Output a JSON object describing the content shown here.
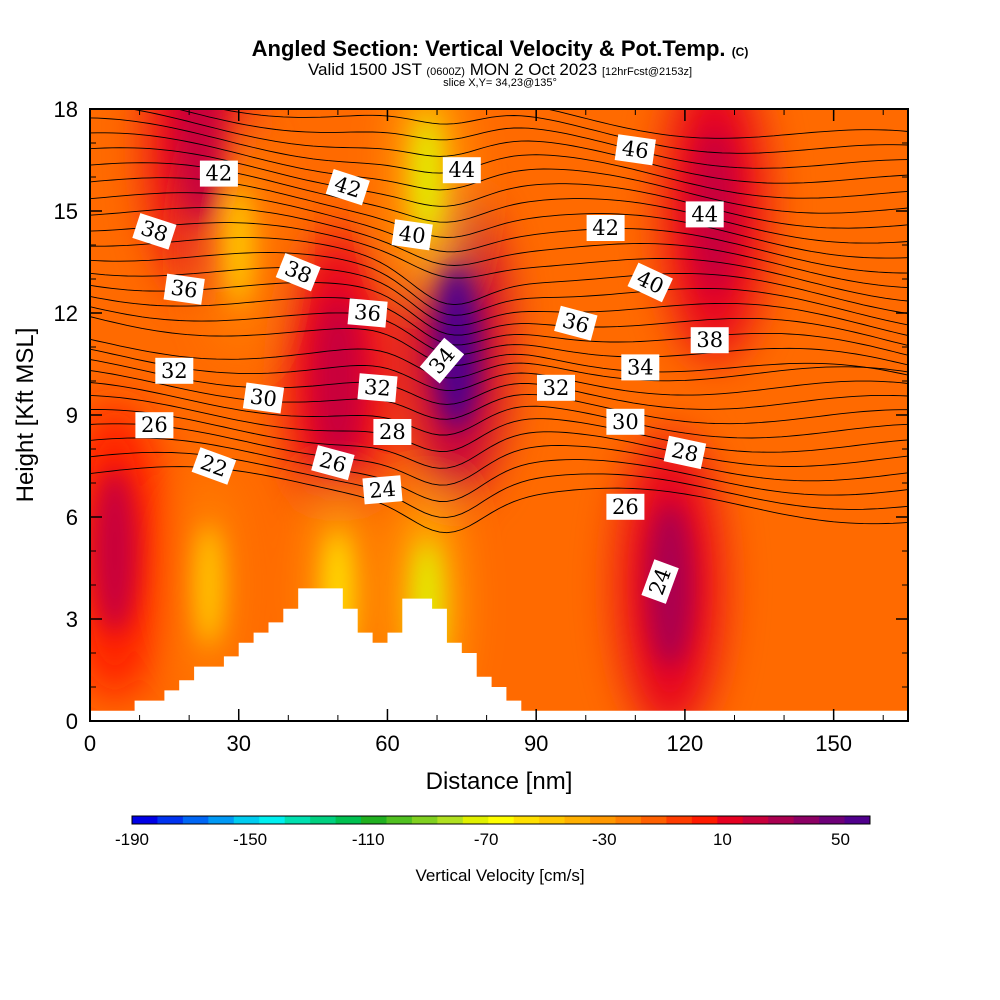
{
  "header": {
    "title_main": "Angled Section: Vertical Velocity & Pot.Temp.",
    "title_mark": "(C)",
    "valid_a": "Valid 1500 JST",
    "valid_b": "(0600Z)",
    "valid_c": "MON 2 Oct 2023",
    "valid_d": "[12hrFcst@2153z]",
    "slice": "slice X,Y= 34,23@135°"
  },
  "chart_data": {
    "type": "heatmap",
    "title": "Angled Section: Vertical Velocity & Pot.Temp.",
    "xlabel": "Distance [nm]",
    "ylabel": "Height [Kft MSL]",
    "xlim": [
      0,
      165
    ],
    "ylim": [
      0,
      18
    ],
    "x_ticks": [
      "0",
      "30",
      "60",
      "90",
      "120",
      "150"
    ],
    "y_ticks": [
      "0",
      "3",
      "6",
      "9",
      "12",
      "15",
      "18"
    ],
    "colorbar": {
      "label": "Vertical Velocity [cm/s]",
      "tick_labels": [
        "-190",
        "-150",
        "-110",
        "-70",
        "-30",
        "10",
        "50"
      ],
      "colors": [
        "#0000e6",
        "#0033f0",
        "#0066f5",
        "#0099f5",
        "#00ccf0",
        "#00f0f0",
        "#00e0b0",
        "#00d080",
        "#00c050",
        "#20b020",
        "#50c020",
        "#80d020",
        "#b0e020",
        "#e0f000",
        "#ffff00",
        "#ffe000",
        "#ffc800",
        "#ffb000",
        "#ff9800",
        "#ff7f00",
        "#ff6000",
        "#ff3c00",
        "#ff1a00",
        "#e60020",
        "#c8003c",
        "#aa0050",
        "#8c0064",
        "#6e0078",
        "#50008c"
      ]
    },
    "shading_features": [
      {
        "kind": "updraft",
        "x": 74,
        "y": 11,
        "value": 55
      },
      {
        "kind": "updraft",
        "x": 50,
        "y": 10,
        "value": 25
      },
      {
        "kind": "updraft",
        "x": 22,
        "y": 17,
        "value": 25
      },
      {
        "kind": "updraft",
        "x": 126,
        "y": 15,
        "value": 20
      },
      {
        "kind": "updraft",
        "x": 117,
        "y": 4,
        "value": 30
      },
      {
        "kind": "updraft",
        "x": 5,
        "y": 5,
        "value": 18
      },
      {
        "kind": "downdraft",
        "x": 68,
        "y": 16,
        "value": -70
      },
      {
        "kind": "downdraft",
        "x": 30,
        "y": 14,
        "value": -45
      },
      {
        "kind": "downdraft",
        "x": 68,
        "y": 3.5,
        "value": -75
      },
      {
        "kind": "downdraft",
        "x": 50,
        "y": 3.8,
        "value": -60
      },
      {
        "kind": "downdraft",
        "x": 24,
        "y": 4,
        "value": -45
      }
    ],
    "terrain": [
      [
        0,
        0.3
      ],
      [
        9,
        0.3
      ],
      [
        9,
        0.6
      ],
      [
        15,
        0.6
      ],
      [
        15,
        0.9
      ],
      [
        18,
        0.9
      ],
      [
        18,
        1.2
      ],
      [
        21,
        1.2
      ],
      [
        21,
        1.6
      ],
      [
        27,
        1.6
      ],
      [
        27,
        1.9
      ],
      [
        30,
        1.9
      ],
      [
        30,
        2.3
      ],
      [
        33,
        2.3
      ],
      [
        33,
        2.6
      ],
      [
        36,
        2.6
      ],
      [
        36,
        2.9
      ],
      [
        39,
        2.9
      ],
      [
        39,
        3.3
      ],
      [
        42,
        3.3
      ],
      [
        42,
        3.9
      ],
      [
        51,
        3.9
      ],
      [
        51,
        3.3
      ],
      [
        54,
        3.3
      ],
      [
        54,
        2.6
      ],
      [
        57,
        2.6
      ],
      [
        57,
        2.3
      ],
      [
        60,
        2.3
      ],
      [
        60,
        2.6
      ],
      [
        63,
        2.6
      ],
      [
        63,
        3.6
      ],
      [
        69,
        3.6
      ],
      [
        69,
        3.3
      ],
      [
        72,
        3.3
      ],
      [
        72,
        2.3
      ],
      [
        75,
        2.3
      ],
      [
        75,
        2.0
      ],
      [
        78,
        2.0
      ],
      [
        78,
        1.3
      ],
      [
        81,
        1.3
      ],
      [
        81,
        1.0
      ],
      [
        84,
        1.0
      ],
      [
        84,
        0.6
      ],
      [
        87,
        0.6
      ],
      [
        87,
        0.3
      ],
      [
        165,
        0.3
      ]
    ],
    "theta_labels": [
      {
        "text": "42",
        "x": 26,
        "y": 16.1,
        "angle": 0
      },
      {
        "text": "42",
        "x": 52,
        "y": 15.7,
        "angle": 18
      },
      {
        "text": "44",
        "x": 75,
        "y": 16.2,
        "angle": 0
      },
      {
        "text": "46",
        "x": 110,
        "y": 16.8,
        "angle": 8
      },
      {
        "text": "38",
        "x": 13,
        "y": 14.4,
        "angle": 18
      },
      {
        "text": "40",
        "x": 65,
        "y": 14.3,
        "angle": 8
      },
      {
        "text": "42",
        "x": 104,
        "y": 14.5,
        "angle": 0
      },
      {
        "text": "44",
        "x": 124,
        "y": 14.9,
        "angle": 0
      },
      {
        "text": "38",
        "x": 42,
        "y": 13.2,
        "angle": 22
      },
      {
        "text": "36",
        "x": 19,
        "y": 12.7,
        "angle": 8
      },
      {
        "text": "40",
        "x": 113,
        "y": 12.9,
        "angle": 25
      },
      {
        "text": "36",
        "x": 56,
        "y": 12.0,
        "angle": 5
      },
      {
        "text": "36",
        "x": 98,
        "y": 11.7,
        "angle": 15
      },
      {
        "text": "38",
        "x": 125,
        "y": 11.2,
        "angle": 0
      },
      {
        "text": "34",
        "x": 71,
        "y": 10.6,
        "angle": -50
      },
      {
        "text": "34",
        "x": 111,
        "y": 10.4,
        "angle": 0
      },
      {
        "text": "32",
        "x": 17,
        "y": 10.3,
        "angle": 0
      },
      {
        "text": "32",
        "x": 58,
        "y": 9.8,
        "angle": 5
      },
      {
        "text": "32",
        "x": 94,
        "y": 9.8,
        "angle": 0
      },
      {
        "text": "30",
        "x": 35,
        "y": 9.5,
        "angle": 8
      },
      {
        "text": "30",
        "x": 108,
        "y": 8.8,
        "angle": 0
      },
      {
        "text": "26",
        "x": 13,
        "y": 8.7,
        "angle": 0
      },
      {
        "text": "28",
        "x": 61,
        "y": 8.5,
        "angle": 0
      },
      {
        "text": "28",
        "x": 120,
        "y": 7.9,
        "angle": 12
      },
      {
        "text": "22",
        "x": 25,
        "y": 7.5,
        "angle": 20
      },
      {
        "text": "26",
        "x": 49,
        "y": 7.6,
        "angle": 15
      },
      {
        "text": "24",
        "x": 59,
        "y": 6.8,
        "angle": -5
      },
      {
        "text": "26",
        "x": 108,
        "y": 6.3,
        "angle": 0
      },
      {
        "text": "24",
        "x": 115,
        "y": 4.1,
        "angle": -70
      }
    ]
  }
}
